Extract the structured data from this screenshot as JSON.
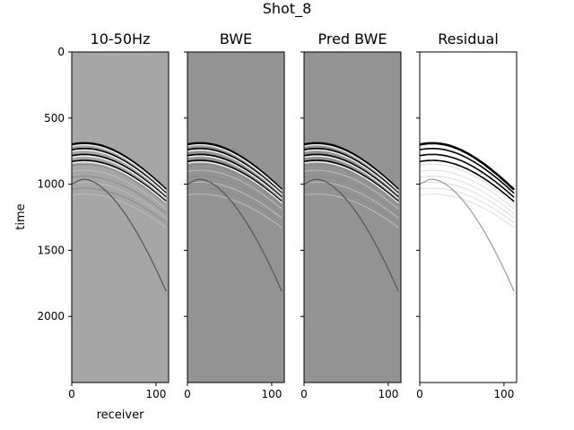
{
  "suptitle": "Shot_8",
  "chart_data": [
    {
      "type": "heatmap",
      "title": "10-50Hz",
      "xlabel": "receiver",
      "ylabel": "time",
      "xlim": [
        0,
        115
      ],
      "ylim": [
        2500,
        0
      ],
      "x_ticks": [
        0,
        100
      ],
      "y_ticks": [
        0,
        500,
        1000,
        1500,
        2000
      ],
      "colormap": "gray",
      "background": "#a6a6a6"
    },
    {
      "type": "heatmap",
      "title": "BWE",
      "xlabel": "",
      "ylabel": "",
      "xlim": [
        0,
        115
      ],
      "ylim": [
        2500,
        0
      ],
      "x_ticks": [
        0,
        100
      ],
      "y_ticks": [
        0,
        500,
        1000,
        1500,
        2000
      ],
      "colormap": "gray",
      "background": "#939393"
    },
    {
      "type": "heatmap",
      "title": "Pred BWE",
      "xlabel": "",
      "ylabel": "",
      "xlim": [
        0,
        115
      ],
      "ylim": [
        2500,
        0
      ],
      "x_ticks": [
        0,
        100
      ],
      "y_ticks": [
        0,
        500,
        1000,
        1500,
        2000
      ],
      "colormap": "gray",
      "background": "#939393"
    },
    {
      "type": "heatmap",
      "title": "Residual",
      "xlabel": "",
      "ylabel": "",
      "xlim": [
        0,
        115
      ],
      "ylim": [
        2500,
        0
      ],
      "x_ticks": [
        0,
        100
      ],
      "y_ticks": [
        0,
        500,
        1000,
        1500,
        2000
      ],
      "colormap": "gray_r",
      "background": "#ffffff"
    }
  ],
  "events": {
    "apex_receiver": 15,
    "apex_time": 690,
    "end_receiver": 112,
    "end_time": 1470,
    "offsets_ms": [
      0,
      40,
      85,
      130
    ],
    "secondary_end_time": 1250
  }
}
